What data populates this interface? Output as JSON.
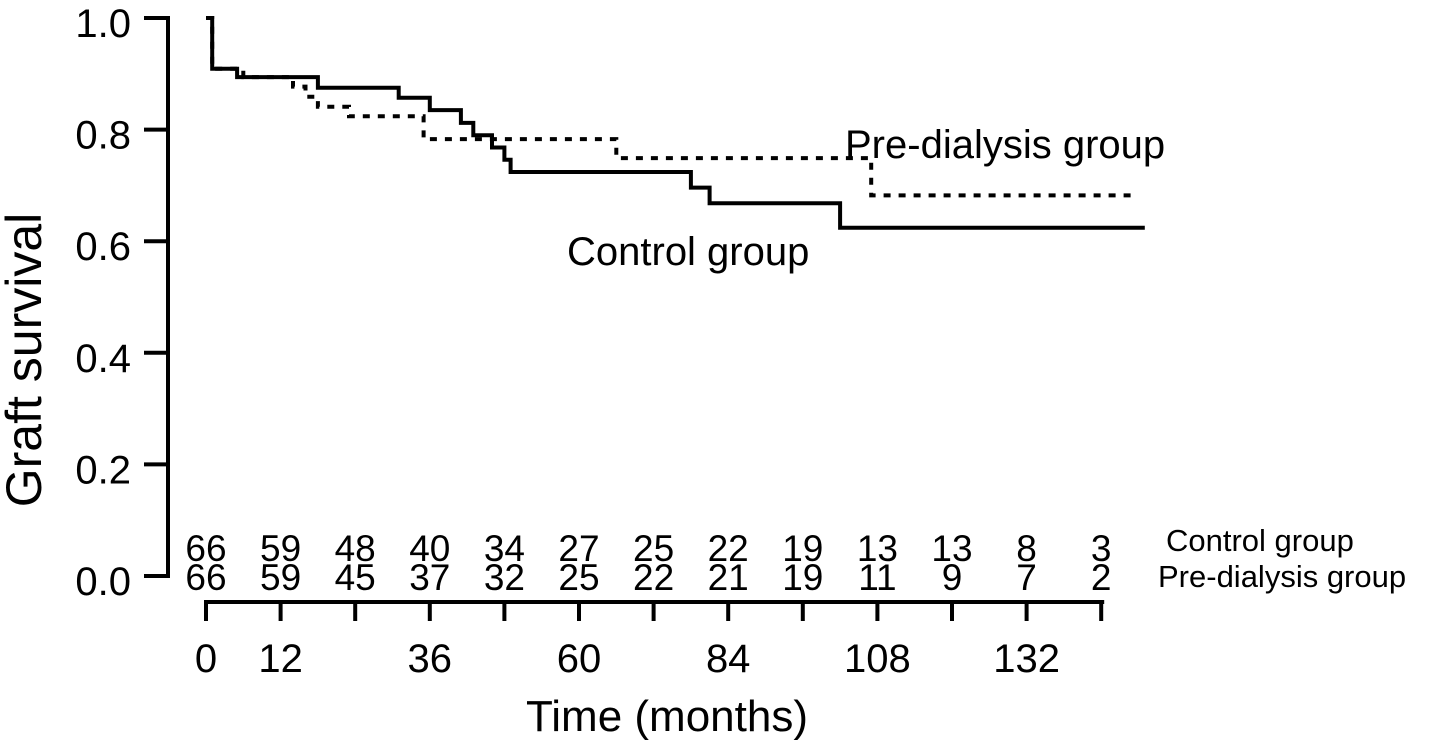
{
  "figure": {
    "background": "#ffffff",
    "ink_color": "#000000"
  },
  "chart_data": {
    "type": "line",
    "subtype": "kaplan-meier-step-curves",
    "title": "",
    "xlabel": "Time (months)",
    "ylabel": "Graft survival",
    "xlim": [
      0,
      151
    ],
    "ylim": [
      0.0,
      1.0
    ],
    "grid": false,
    "legend": "inline-curve-labels",
    "x_ticks": [
      0,
      12,
      24,
      36,
      48,
      60,
      72,
      84,
      96,
      108,
      120,
      132,
      144
    ],
    "x_tick_labels": [
      "0",
      "12",
      "",
      "36",
      "",
      "60",
      "",
      "84",
      "",
      "108",
      "",
      "132",
      ""
    ],
    "y_ticks": [
      0.0,
      0.2,
      0.4,
      0.6,
      0.8,
      1.0
    ],
    "y_tick_labels": [
      "0.0",
      "0.2",
      "0.4",
      "0.6",
      "0.8",
      "1.0"
    ],
    "series": [
      {
        "name": "Control group",
        "line_style": "solid",
        "color": "#000000",
        "steps": [
          [
            0,
            1.0
          ],
          [
            1,
            0.909
          ],
          [
            5,
            0.894
          ],
          [
            18,
            0.875
          ],
          [
            31,
            0.857
          ],
          [
            36,
            0.835
          ],
          [
            41,
            0.812
          ],
          [
            43,
            0.79
          ],
          [
            46,
            0.768
          ],
          [
            48,
            0.746
          ],
          [
            49,
            0.724
          ],
          [
            78,
            0.696
          ],
          [
            81,
            0.668
          ],
          [
            102,
            0.624
          ],
          [
            151,
            0.624
          ]
        ]
      },
      {
        "name": "Pre-dialysis group",
        "line_style": "dashed",
        "color": "#000000",
        "steps": [
          [
            0,
            1.0
          ],
          [
            1,
            0.909
          ],
          [
            6,
            0.894
          ],
          [
            14,
            0.877
          ],
          [
            16,
            0.859
          ],
          [
            18,
            0.841
          ],
          [
            23,
            0.824
          ],
          [
            35,
            0.783
          ],
          [
            66,
            0.749
          ],
          [
            107,
            0.682
          ],
          [
            150,
            0.682
          ]
        ]
      }
    ],
    "curve_labels": [
      {
        "text": "Control group",
        "x": 567,
        "y": 265
      },
      {
        "text": "Pre-dialysis group",
        "x": 845,
        "y": 158
      }
    ],
    "risk_table": {
      "times": [
        0,
        12,
        24,
        36,
        48,
        60,
        72,
        84,
        96,
        108,
        120,
        132,
        144
      ],
      "rows": [
        {
          "label": "Control group",
          "counts": [
            "66",
            "59",
            "48",
            "40",
            "34",
            "27",
            "25",
            "22",
            "19",
            "13",
            "13",
            "8",
            "3"
          ]
        },
        {
          "label": "Pre-dialysis group",
          "counts": [
            "66",
            "59",
            "45",
            "37",
            "32",
            "25",
            "22",
            "21",
            "19",
            "11",
            "9",
            "7",
            "2"
          ]
        }
      ]
    }
  }
}
